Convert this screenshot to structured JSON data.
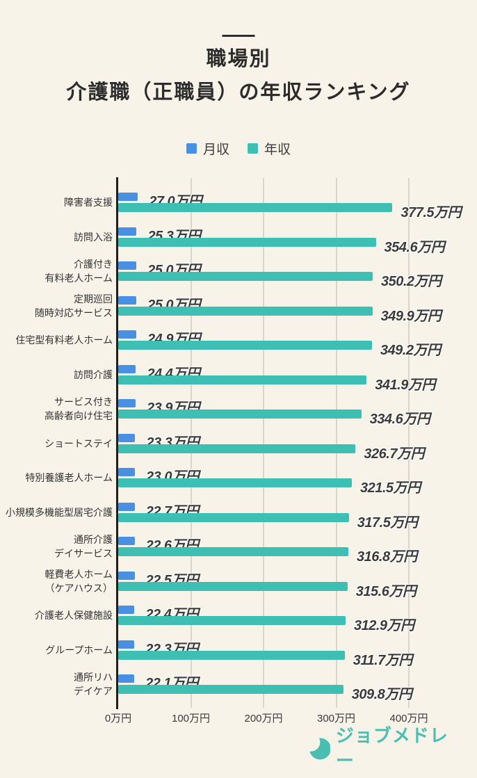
{
  "header": {
    "title_line1": "職場別",
    "title_line2": "介護職（正職員）の年収ランキング"
  },
  "legend": {
    "items": [
      {
        "label": "月収",
        "color": "#4a90e2"
      },
      {
        "label": "年収",
        "color": "#3dbfb3"
      }
    ]
  },
  "chart_data": {
    "type": "bar",
    "orientation": "horizontal",
    "title": "職場別 介護職（正職員）の年収ランキング",
    "unit": "万円",
    "xlim": [
      0,
      400
    ],
    "grid": true,
    "legend_position": "top",
    "x_ticks": [
      {
        "value": 0,
        "label": "0万円"
      },
      {
        "value": 100,
        "label": "100万円"
      },
      {
        "value": 200,
        "label": "200万円"
      },
      {
        "value": 300,
        "label": "300万円"
      },
      {
        "value": 400,
        "label": "400万円"
      }
    ],
    "categories": [
      [
        "障害者支援"
      ],
      [
        "訪問入浴"
      ],
      [
        "介護付き",
        "有料老人ホーム"
      ],
      [
        "定期巡回",
        "随時対応サービス"
      ],
      [
        "住宅型有料老人ホーム"
      ],
      [
        "訪問介護"
      ],
      [
        "サービス付き",
        "高齢者向け住宅"
      ],
      [
        "ショートステイ"
      ],
      [
        "特別養護老人ホーム"
      ],
      [
        "小規模多機能型居宅介護"
      ],
      [
        "通所介護",
        "デイサービス"
      ],
      [
        "軽費老人ホーム",
        "（ケアハウス）"
      ],
      [
        "介護老人保健施設"
      ],
      [
        "グループホーム"
      ],
      [
        "通所リハ",
        "デイケア"
      ]
    ],
    "series": [
      {
        "name": "月収",
        "color": "#4a90e2",
        "values": [
          27.0,
          25.3,
          25.0,
          25.0,
          24.9,
          24.4,
          23.9,
          23.3,
          23.0,
          22.7,
          22.6,
          22.5,
          22.4,
          22.3,
          22.1
        ]
      },
      {
        "name": "年収",
        "color": "#3dbfb3",
        "values": [
          377.5,
          354.6,
          350.2,
          349.9,
          349.2,
          341.9,
          334.6,
          326.7,
          321.5,
          317.5,
          316.8,
          315.6,
          312.9,
          311.7,
          309.8
        ]
      }
    ]
  },
  "footer": {
    "brand": "ジョブメドレー",
    "brand_color": "#4abfb1",
    "logo_icon": "crescent-moon-icon"
  },
  "colors": {
    "background": "#f7f3e9",
    "monthly_bar": "#4a90e2",
    "annual_bar": "#3dbfb3",
    "gridline": "#d9d5cb",
    "axis_line": "#1f1f1f",
    "title_text": "#2c2c2c",
    "value_text": "#3b3b3b"
  }
}
